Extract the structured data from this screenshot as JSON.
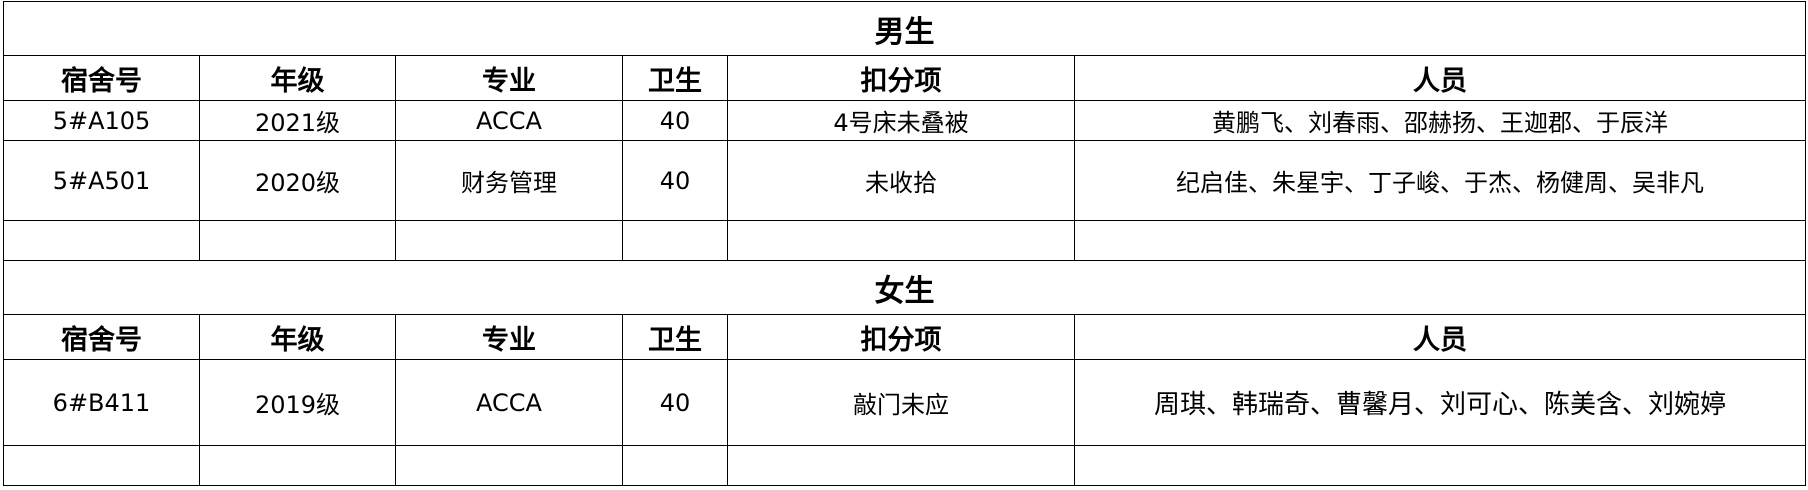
{
  "columns": [
    "宿舍号",
    "年级",
    "专业",
    "卫生",
    "扣分项",
    "人员"
  ],
  "sections": [
    {
      "title": "男生",
      "rows": [
        [
          "5#A105",
          "2021级",
          "ACCA",
          "40",
          "4号床未叠被",
          "黄鹏飞、刘春雨、邵赫扬、王迦郡、于辰洋"
        ],
        [
          "5#A501",
          "2020级",
          "财务管理",
          "40",
          "未收拾",
          "纪启佳、朱星宇、丁子峻、于杰、杨健周、吴非凡"
        ],
        [
          "",
          "",
          "",
          "",
          "",
          ""
        ]
      ]
    },
    {
      "title": "女生",
      "rows": [
        [
          "6#B411",
          "2019级",
          "ACCA",
          "40",
          "敲门未应",
          "周琪、韩瑞奇、曹馨月、刘可心、陈美含、刘婉婷"
        ],
        [
          "",
          "",
          "",
          "",
          "",
          ""
        ]
      ]
    }
  ]
}
